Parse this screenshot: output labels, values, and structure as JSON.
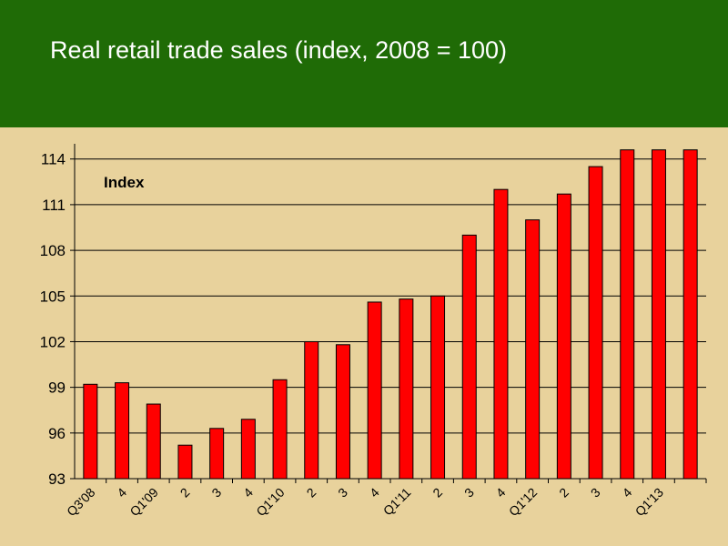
{
  "header": {
    "title": "Real retail trade sales (index, 2008 = 100)",
    "background": "#1f6b06"
  },
  "chart_data": {
    "type": "bar",
    "title": "Real retail trade sales (index, 2008 = 100)",
    "annotation": "Index",
    "xlabel": "",
    "ylabel": "",
    "ylim": [
      93,
      115
    ],
    "yticks": [
      93,
      96,
      99,
      102,
      105,
      108,
      111,
      114
    ],
    "grid": true,
    "legend": "none",
    "bar_color": "#ff0000",
    "categories": [
      "Q3'08",
      "4",
      "Q1'09",
      "2",
      "3",
      "4",
      "Q1'10",
      "2",
      "3",
      "4",
      "Q1'11",
      "2",
      "3",
      "4",
      "Q1'12",
      "2",
      "3",
      "4",
      "Q1'13",
      ""
    ],
    "values": [
      99.2,
      99.3,
      97.9,
      95.2,
      96.3,
      96.9,
      99.5,
      102.0,
      101.8,
      104.6,
      104.8,
      105.0,
      109.0,
      112.0,
      110.0,
      111.7,
      113.5,
      114.6,
      114.6,
      114.6
    ]
  }
}
